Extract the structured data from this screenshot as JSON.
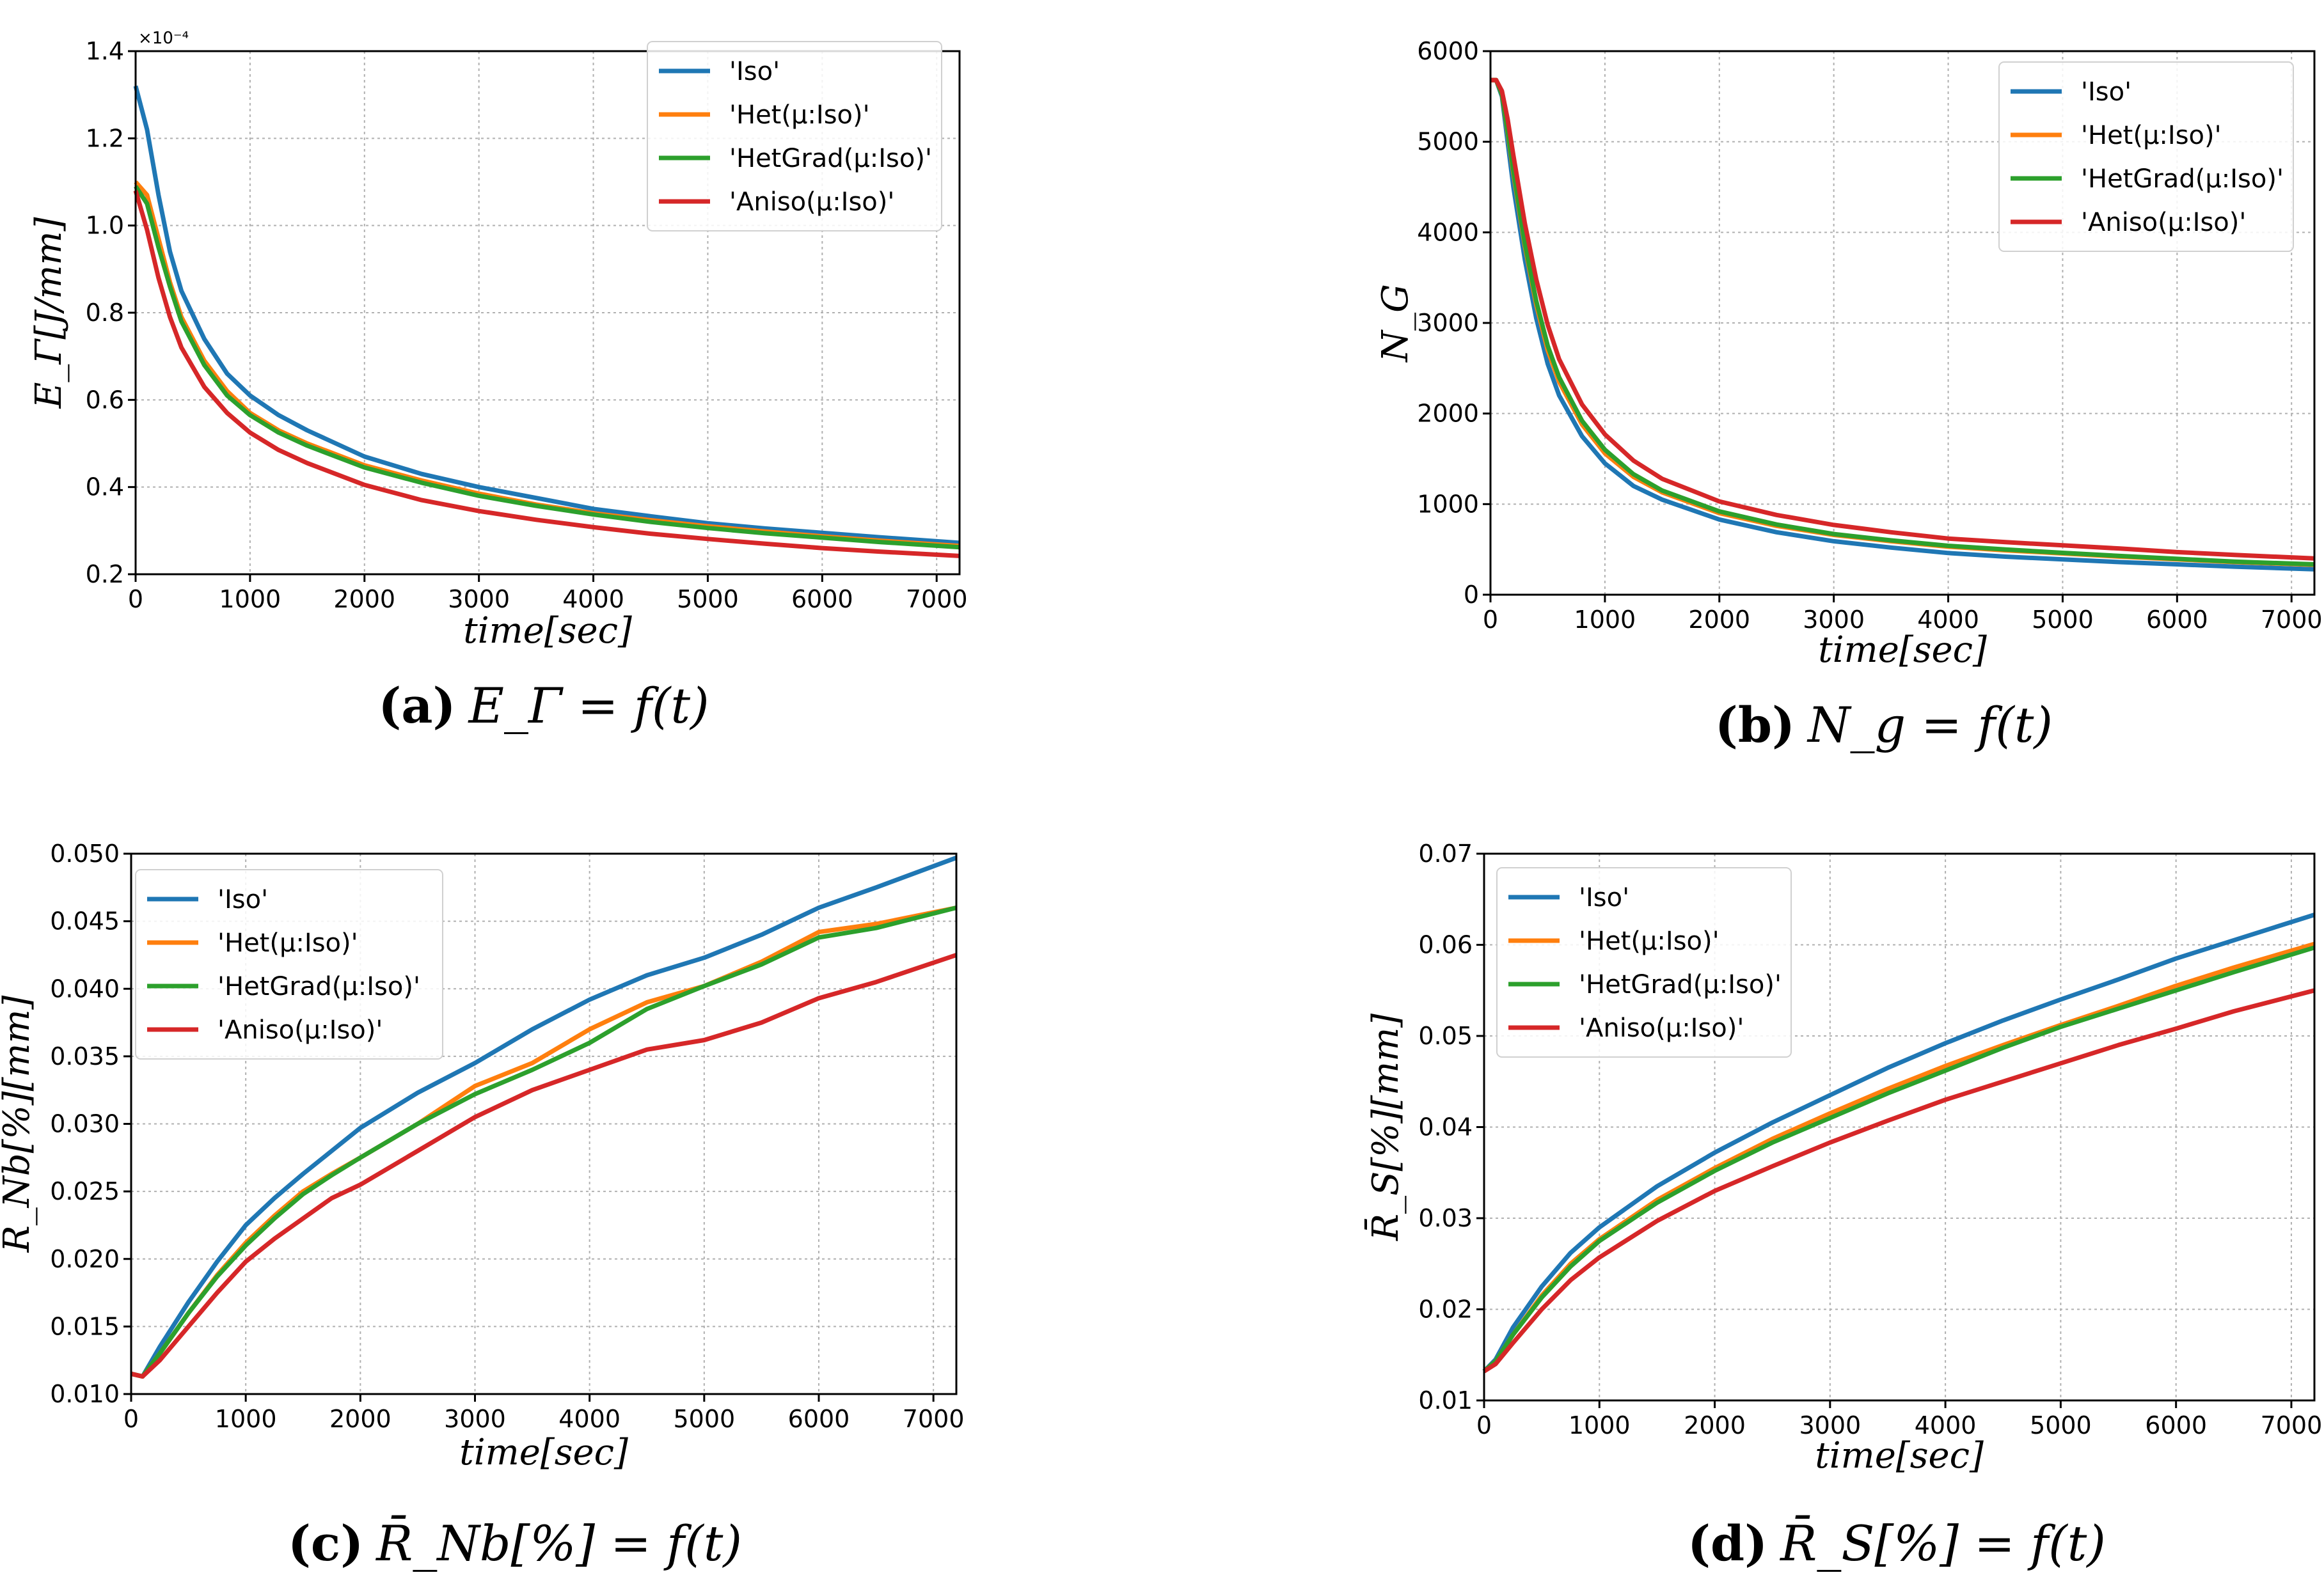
{
  "chart_data": [
    {
      "id": "a",
      "type": "line",
      "ylabel": "E_Γ[J/mm]",
      "xlabel": "time[sec]",
      "caption_label": "(a)",
      "caption_formula": "E_Γ = f(t)",
      "y_multiplier_label": "×10⁻⁴",
      "xlim": [
        0,
        7200
      ],
      "ylim": [
        0.2,
        1.4
      ],
      "xticks": [
        0,
        1000,
        2000,
        3000,
        4000,
        5000,
        6000,
        7000
      ],
      "yticks": [
        0.2,
        0.4,
        0.6,
        0.8,
        1.0,
        1.2,
        1.4
      ],
      "ytick_labels": [
        "0.2",
        "0.4",
        "0.6",
        "0.8",
        "1.0",
        "1.2",
        "1.4"
      ],
      "grid": true,
      "legend_position": "top-right",
      "x": [
        0,
        100,
        200,
        300,
        400,
        600,
        800,
        1000,
        1250,
        1500,
        2000,
        2500,
        3000,
        3500,
        4000,
        4500,
        5000,
        5500,
        6000,
        6500,
        7200
      ],
      "series": [
        {
          "name": "'Iso'",
          "color": "#1f77b4",
          "values": [
            1.32,
            1.22,
            1.07,
            0.94,
            0.85,
            0.74,
            0.66,
            0.61,
            0.565,
            0.53,
            0.47,
            0.43,
            0.4,
            0.375,
            0.35,
            0.333,
            0.317,
            0.305,
            0.295,
            0.285,
            0.272
          ]
        },
        {
          "name": "'Het(μ:Iso)'",
          "color": "#ff7f0e",
          "values": [
            1.1,
            1.07,
            0.97,
            0.87,
            0.79,
            0.69,
            0.62,
            0.57,
            0.53,
            0.5,
            0.45,
            0.415,
            0.385,
            0.36,
            0.34,
            0.324,
            0.31,
            0.298,
            0.287,
            0.277,
            0.265
          ]
        },
        {
          "name": "'HetGrad(μ:Iso)'",
          "color": "#2ca02c",
          "values": [
            1.09,
            1.05,
            0.95,
            0.86,
            0.78,
            0.68,
            0.61,
            0.565,
            0.525,
            0.495,
            0.445,
            0.41,
            0.38,
            0.357,
            0.337,
            0.32,
            0.306,
            0.294,
            0.284,
            0.274,
            0.262
          ]
        },
        {
          "name": "'Aniso(μ:Iso)'",
          "color": "#d62728",
          "values": [
            1.08,
            0.99,
            0.88,
            0.79,
            0.72,
            0.63,
            0.57,
            0.525,
            0.485,
            0.455,
            0.405,
            0.37,
            0.345,
            0.325,
            0.308,
            0.293,
            0.281,
            0.27,
            0.26,
            0.252,
            0.242
          ]
        }
      ]
    },
    {
      "id": "b",
      "type": "line",
      "ylabel": "N_G",
      "xlabel": "time[sec]",
      "caption_label": "(b)",
      "caption_formula": "N_g = f(t)",
      "xlim": [
        0,
        7200
      ],
      "ylim": [
        0,
        6000
      ],
      "xticks": [
        0,
        1000,
        2000,
        3000,
        4000,
        5000,
        6000,
        7000
      ],
      "yticks": [
        0,
        1000,
        2000,
        3000,
        4000,
        5000,
        6000
      ],
      "ytick_labels": [
        "0",
        "1000",
        "2000",
        "3000",
        "4000",
        "5000",
        "6000"
      ],
      "grid": true,
      "legend_position": "top-right",
      "x": [
        0,
        50,
        100,
        150,
        200,
        300,
        400,
        500,
        600,
        800,
        1000,
        1250,
        1500,
        2000,
        2500,
        3000,
        3500,
        4000,
        4500,
        5000,
        5500,
        6000,
        6500,
        7200
      ],
      "series": [
        {
          "name": "'Iso'",
          "color": "#1f77b4",
          "values": [
            5680,
            5680,
            5500,
            5000,
            4500,
            3700,
            3050,
            2550,
            2200,
            1750,
            1450,
            1200,
            1050,
            830,
            690,
            590,
            520,
            460,
            420,
            390,
            360,
            335,
            310,
            280
          ]
        },
        {
          "name": "'Het(μ:Iso)'",
          "color": "#ff7f0e",
          "values": [
            5680,
            5680,
            5520,
            5100,
            4650,
            3850,
            3200,
            2700,
            2350,
            1880,
            1560,
            1300,
            1130,
            900,
            760,
            660,
            590,
            530,
            490,
            455,
            420,
            390,
            360,
            330
          ]
        },
        {
          "name": "'HetGrad(μ:Iso)'",
          "color": "#2ca02c",
          "values": [
            5680,
            5680,
            5520,
            5120,
            4680,
            3880,
            3240,
            2750,
            2400,
            1920,
            1600,
            1330,
            1150,
            920,
            775,
            670,
            600,
            540,
            500,
            462,
            428,
            396,
            365,
            335
          ]
        },
        {
          "name": "'Aniso(μ:Iso)'",
          "color": "#d62728",
          "values": [
            5680,
            5680,
            5560,
            5250,
            4850,
            4100,
            3480,
            2980,
            2600,
            2100,
            1770,
            1480,
            1280,
            1030,
            880,
            770,
            690,
            620,
            580,
            545,
            510,
            470,
            440,
            400
          ]
        }
      ]
    },
    {
      "id": "c",
      "type": "line",
      "ylabel": "R̄_Nb[%][mm]",
      "xlabel": "time[sec]",
      "caption_label": "(c)",
      "caption_formula": "R̄_Nb[%] = f(t)",
      "xlim": [
        0,
        7200
      ],
      "ylim": [
        0.01,
        0.05
      ],
      "xticks": [
        0,
        1000,
        2000,
        3000,
        4000,
        5000,
        6000,
        7000
      ],
      "yticks": [
        0.01,
        0.015,
        0.02,
        0.025,
        0.03,
        0.035,
        0.04,
        0.045,
        0.05
      ],
      "ytick_labels": [
        "0.010",
        "0.015",
        "0.020",
        "0.025",
        "0.030",
        "0.035",
        "0.040",
        "0.045",
        "0.050"
      ],
      "grid": true,
      "legend_position": "top-left",
      "x": [
        0,
        100,
        250,
        500,
        750,
        1000,
        1250,
        1500,
        1750,
        2000,
        2500,
        3000,
        3500,
        4000,
        4500,
        5000,
        5500,
        6000,
        6500,
        7200
      ],
      "series": [
        {
          "name": "'Iso'",
          "color": "#1f77b4",
          "values": [
            0.0115,
            0.0113,
            0.0135,
            0.0168,
            0.0198,
            0.0225,
            0.0245,
            0.0263,
            0.028,
            0.0297,
            0.0323,
            0.0345,
            0.037,
            0.0392,
            0.041,
            0.0423,
            0.044,
            0.046,
            0.0475,
            0.0497
          ]
        },
        {
          "name": "'Het(μ:Iso)'",
          "color": "#ff7f0e",
          "values": [
            0.0115,
            0.0113,
            0.013,
            0.016,
            0.0188,
            0.0212,
            0.0232,
            0.025,
            0.0263,
            0.0275,
            0.03,
            0.0328,
            0.0345,
            0.037,
            0.039,
            0.0402,
            0.042,
            0.0442,
            0.0448,
            0.046
          ]
        },
        {
          "name": "'HetGrad(μ:Iso)'",
          "color": "#2ca02c",
          "values": [
            0.0115,
            0.0113,
            0.013,
            0.016,
            0.0187,
            0.021,
            0.023,
            0.0248,
            0.0262,
            0.0275,
            0.03,
            0.0322,
            0.034,
            0.036,
            0.0385,
            0.0402,
            0.0418,
            0.0438,
            0.0445,
            0.046
          ]
        },
        {
          "name": "'Aniso(μ:Iso)'",
          "color": "#d62728",
          "values": [
            0.0115,
            0.0113,
            0.0125,
            0.015,
            0.0175,
            0.0198,
            0.0215,
            0.023,
            0.0245,
            0.0255,
            0.028,
            0.0305,
            0.0325,
            0.034,
            0.0355,
            0.0362,
            0.0375,
            0.0393,
            0.0405,
            0.0425
          ]
        }
      ]
    },
    {
      "id": "d",
      "type": "line",
      "ylabel": "R̄_S[%][mm]",
      "xlabel": "time[sec]",
      "caption_label": "(d)",
      "caption_formula": "R̄_S[%] = f(t)",
      "xlim": [
        0,
        7200
      ],
      "ylim": [
        0.01,
        0.07
      ],
      "xticks": [
        0,
        1000,
        2000,
        3000,
        4000,
        5000,
        6000,
        7000
      ],
      "yticks": [
        0.01,
        0.02,
        0.03,
        0.04,
        0.05,
        0.06,
        0.07
      ],
      "ytick_labels": [
        "0.01",
        "0.02",
        "0.03",
        "0.04",
        "0.05",
        "0.06",
        "0.07"
      ],
      "grid": true,
      "legend_position": "top-left",
      "x": [
        0,
        100,
        250,
        500,
        750,
        1000,
        1500,
        2000,
        2500,
        3000,
        3500,
        4000,
        4500,
        5000,
        5500,
        6000,
        6500,
        7200
      ],
      "series": [
        {
          "name": "'Iso'",
          "color": "#1f77b4",
          "values": [
            0.0132,
            0.0145,
            0.018,
            0.0225,
            0.0262,
            0.029,
            0.0335,
            0.0372,
            0.0405,
            0.0435,
            0.0465,
            0.0492,
            0.0517,
            0.054,
            0.0562,
            0.0585,
            0.0605,
            0.0633
          ]
        },
        {
          "name": "'Het(μ:Iso)'",
          "color": "#ff7f0e",
          "values": [
            0.0132,
            0.0143,
            0.0172,
            0.0215,
            0.025,
            0.0277,
            0.032,
            0.0355,
            0.0387,
            0.0415,
            0.0442,
            0.0467,
            0.049,
            0.0512,
            0.0533,
            0.0555,
            0.0575,
            0.0601
          ]
        },
        {
          "name": "'HetGrad(μ:Iso)'",
          "color": "#2ca02c",
          "values": [
            0.0132,
            0.0143,
            0.0172,
            0.0213,
            0.0247,
            0.0275,
            0.0317,
            0.0352,
            0.0383,
            0.041,
            0.0437,
            0.0462,
            0.0487,
            0.051,
            0.053,
            0.055,
            0.057,
            0.0597
          ]
        },
        {
          "name": "'Aniso(μ:Iso)'",
          "color": "#d62728",
          "values": [
            0.0132,
            0.014,
            0.0163,
            0.02,
            0.0232,
            0.0257,
            0.0297,
            0.033,
            0.0357,
            0.0383,
            0.0407,
            0.043,
            0.045,
            0.047,
            0.049,
            0.0508,
            0.0527,
            0.055
          ]
        }
      ]
    }
  ]
}
